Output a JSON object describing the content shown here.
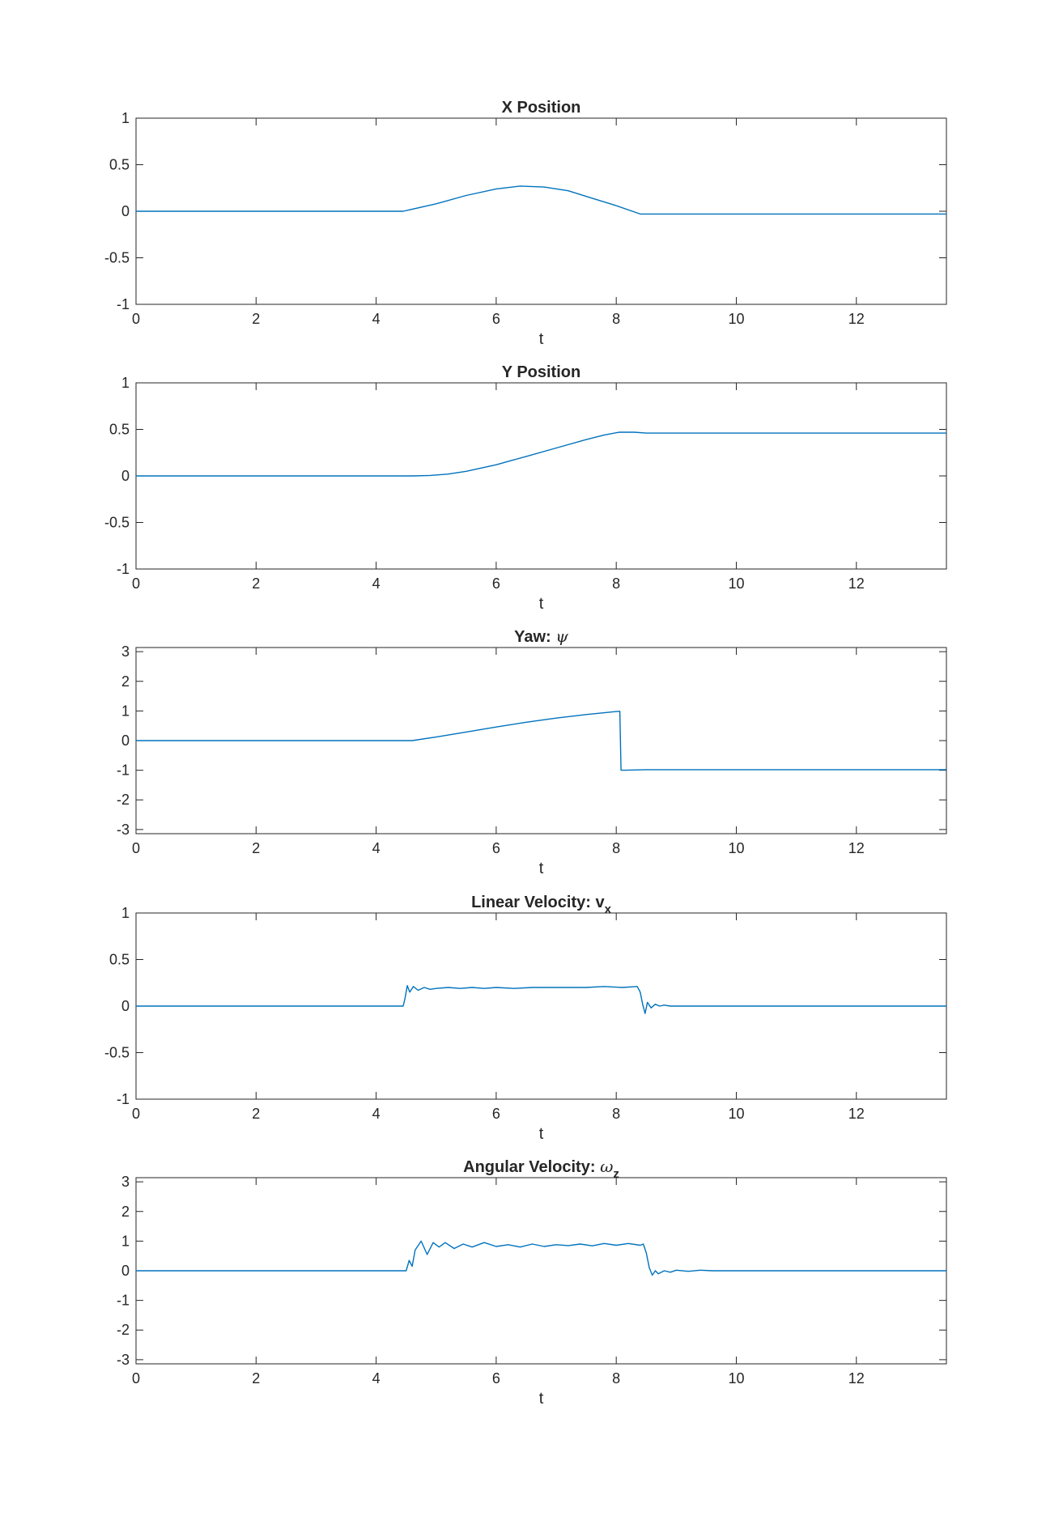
{
  "figure": {
    "background": "#ffffff",
    "line_color": "#0072BD"
  },
  "chart_data": [
    {
      "type": "line",
      "title": "X Position",
      "title_symbol": "",
      "title_subscript": "",
      "xlabel": "t",
      "ylabel": "",
      "xlim": [
        0,
        13.5
      ],
      "ylim": [
        -1,
        1
      ],
      "xticks": [
        0,
        2,
        4,
        6,
        8,
        10,
        12
      ],
      "yticks": [
        -1,
        -0.5,
        0,
        0.5,
        1
      ],
      "grid": false,
      "series": [
        {
          "x": [
            0,
            4.45,
            5.0,
            5.5,
            6.0,
            6.4,
            6.8,
            7.2,
            7.6,
            8.0,
            8.4,
            9.0,
            10,
            11,
            12,
            13.5
          ],
          "y": [
            0,
            0,
            0.08,
            0.17,
            0.24,
            0.27,
            0.26,
            0.22,
            0.14,
            0.06,
            -0.03,
            -0.03,
            -0.03,
            -0.03,
            -0.03,
            -0.03
          ]
        }
      ]
    },
    {
      "type": "line",
      "title": "Y Position",
      "title_symbol": "",
      "title_subscript": "",
      "xlabel": "t",
      "ylabel": "",
      "xlim": [
        0,
        13.5
      ],
      "ylim": [
        -1,
        1
      ],
      "xticks": [
        0,
        2,
        4,
        6,
        8,
        10,
        12
      ],
      "yticks": [
        -1,
        -0.5,
        0,
        0.5,
        1
      ],
      "grid": false,
      "series": [
        {
          "x": [
            0,
            4.6,
            4.9,
            5.2,
            5.5,
            6.0,
            6.5,
            7.0,
            7.5,
            7.8,
            8.05,
            8.3,
            8.5,
            9.0,
            10,
            11,
            12,
            13.5
          ],
          "y": [
            0,
            0,
            0.005,
            0.02,
            0.05,
            0.12,
            0.21,
            0.3,
            0.39,
            0.44,
            0.47,
            0.47,
            0.46,
            0.46,
            0.46,
            0.46,
            0.46,
            0.46
          ]
        }
      ]
    },
    {
      "type": "line",
      "title": "Yaw: ",
      "title_symbol": "ψ",
      "title_subscript": "",
      "xlabel": "t",
      "ylabel": "",
      "xlim": [
        0,
        13.5
      ],
      "ylim": [
        -3.14,
        3.14
      ],
      "xticks": [
        0,
        2,
        4,
        6,
        8,
        10,
        12
      ],
      "yticks": [
        -3,
        -2,
        -1,
        0,
        1,
        2,
        3
      ],
      "grid": false,
      "series": [
        {
          "x": [
            0,
            4.6,
            5.0,
            5.5,
            6.0,
            6.5,
            7.0,
            7.5,
            8.0,
            8.06,
            8.08,
            8.15,
            8.5,
            9.0,
            10,
            11,
            12,
            13.5
          ],
          "y": [
            0,
            0,
            0.12,
            0.29,
            0.46,
            0.62,
            0.76,
            0.88,
            0.98,
            0.99,
            -1.0,
            -1.0,
            -0.98,
            -0.98,
            -0.98,
            -0.98,
            -0.98,
            -0.98
          ]
        }
      ]
    },
    {
      "type": "line",
      "title": "Linear Velocity: v",
      "title_symbol": "",
      "title_subscript": "x",
      "xlabel": "t",
      "ylabel": "",
      "xlim": [
        0,
        13.5
      ],
      "ylim": [
        -1,
        1
      ],
      "xticks": [
        0,
        2,
        4,
        6,
        8,
        10,
        12
      ],
      "yticks": [
        -1,
        -0.5,
        0,
        0.5,
        1
      ],
      "grid": false,
      "series": [
        {
          "x": [
            0,
            4.45,
            4.48,
            4.52,
            4.56,
            4.62,
            4.7,
            4.8,
            4.9,
            5.0,
            5.2,
            5.4,
            5.6,
            5.8,
            6.0,
            6.3,
            6.6,
            6.9,
            7.2,
            7.5,
            7.8,
            8.1,
            8.35,
            8.4,
            8.44,
            8.48,
            8.52,
            8.58,
            8.65,
            8.72,
            8.8,
            8.9,
            9.1,
            10,
            11,
            12,
            13.5
          ],
          "y": [
            0,
            0,
            0.08,
            0.22,
            0.15,
            0.21,
            0.17,
            0.2,
            0.18,
            0.19,
            0.2,
            0.19,
            0.2,
            0.19,
            0.2,
            0.19,
            0.2,
            0.2,
            0.2,
            0.2,
            0.21,
            0.2,
            0.21,
            0.15,
            0.02,
            -0.08,
            0.04,
            -0.02,
            0.02,
            0.0,
            0.01,
            0.0,
            0.0,
            0.0,
            0.0,
            0.0,
            0.0
          ]
        }
      ]
    },
    {
      "type": "line",
      "title": "Angular Velocity: ",
      "title_symbol": "ω",
      "title_subscript": "z",
      "xlabel": "t",
      "ylabel": "",
      "xlim": [
        0,
        13.5
      ],
      "ylim": [
        -3.14,
        3.14
      ],
      "xticks": [
        0,
        2,
        4,
        6,
        8,
        10,
        12
      ],
      "yticks": [
        -3,
        -2,
        -1,
        0,
        1,
        2,
        3
      ],
      "grid": false,
      "series": [
        {
          "x": [
            0,
            4.5,
            4.55,
            4.6,
            4.65,
            4.75,
            4.85,
            4.95,
            5.05,
            5.15,
            5.3,
            5.45,
            5.6,
            5.8,
            6.0,
            6.2,
            6.4,
            6.6,
            6.8,
            7.0,
            7.2,
            7.4,
            7.6,
            7.8,
            8.0,
            8.2,
            8.4,
            8.45,
            8.5,
            8.55,
            8.6,
            8.65,
            8.7,
            8.8,
            8.9,
            9.0,
            9.2,
            9.4,
            9.6,
            10,
            11,
            12,
            13.5
          ],
          "y": [
            0,
            0,
            0.35,
            0.15,
            0.7,
            1.0,
            0.55,
            0.95,
            0.8,
            0.95,
            0.75,
            0.9,
            0.8,
            0.95,
            0.82,
            0.88,
            0.8,
            0.9,
            0.82,
            0.88,
            0.85,
            0.9,
            0.84,
            0.92,
            0.86,
            0.92,
            0.86,
            0.9,
            0.6,
            0.1,
            -0.15,
            0.0,
            -0.1,
            0.0,
            -0.05,
            0.02,
            -0.02,
            0.02,
            0.0,
            0.0,
            0.0,
            0.0,
            0.0
          ]
        }
      ]
    }
  ]
}
